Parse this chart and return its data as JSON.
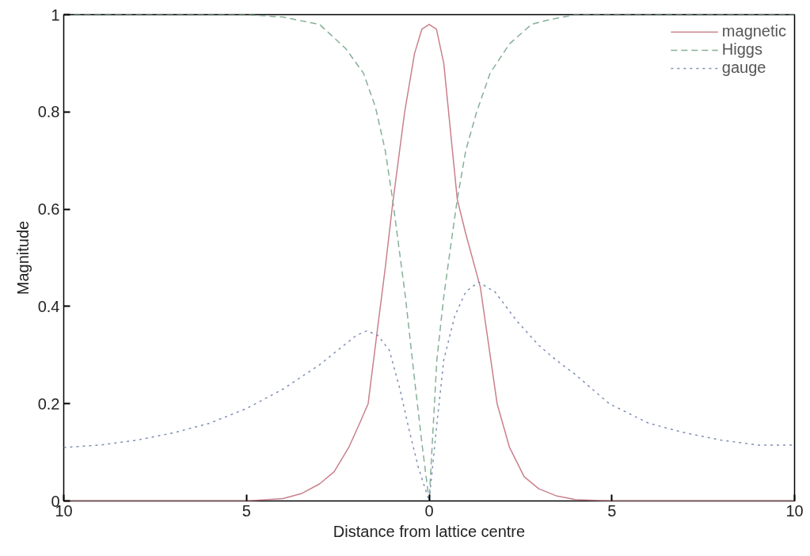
{
  "chart_data": {
    "type": "line",
    "xlabel": "Distance from lattice centre",
    "ylabel": "Magnitude",
    "xlim": [
      -10,
      10
    ],
    "ylim": [
      0,
      1
    ],
    "xticks": [
      {
        "value": -10,
        "label": "10"
      },
      {
        "value": -5,
        "label": "5"
      },
      0,
      5,
      10
    ],
    "yticks": [
      0,
      0.2,
      0.4,
      0.6,
      0.8,
      1
    ],
    "grid": false,
    "legend": "top right",
    "series": [
      {
        "name": "magnetic",
        "color": "#c9808c",
        "line_style": "solid",
        "x": [
          -10,
          -6,
          -5,
          -4,
          -3.5,
          -3,
          -2.6,
          -2.2,
          -1.9,
          -1.67,
          -1.42,
          -1.2,
          -1.0,
          -0.67,
          -0.4,
          -0.2,
          0,
          0.2,
          0.4,
          0.77,
          1.0,
          1.4,
          1.86,
          2.2,
          2.6,
          3,
          3.5,
          4,
          5,
          6,
          10
        ],
        "values": [
          0,
          0,
          0,
          0.005,
          0.015,
          0.035,
          0.06,
          0.11,
          0.16,
          0.2,
          0.35,
          0.48,
          0.61,
          0.8,
          0.92,
          0.97,
          0.98,
          0.97,
          0.9,
          0.62,
          0.55,
          0.44,
          0.2,
          0.11,
          0.05,
          0.025,
          0.01,
          0.003,
          0,
          0,
          0
        ]
      },
      {
        "name": "Higgs",
        "color": "#86b096",
        "line_style": "dashed",
        "x": [
          -10,
          -6,
          -5,
          -4,
          -3,
          -2.28,
          -1.8,
          -1.47,
          -1.2,
          -1.0,
          -0.65,
          -0.4,
          -0.2,
          0,
          0.21,
          0.4,
          0.6,
          0.77,
          1.0,
          1.3,
          1.67,
          2.2,
          2.8,
          3.3,
          4,
          5,
          6,
          10
        ],
        "values": [
          1,
          1,
          1,
          0.995,
          0.98,
          0.93,
          0.88,
          0.81,
          0.72,
          0.62,
          0.42,
          0.25,
          0.12,
          0,
          0.29,
          0.42,
          0.53,
          0.62,
          0.72,
          0.8,
          0.88,
          0.94,
          0.98,
          0.99,
          1,
          1,
          1,
          1
        ]
      },
      {
        "name": "gauge",
        "color": "#7f90b4",
        "line_style": "dotted",
        "x": [
          -10,
          -9,
          -8,
          -7,
          -6,
          -5,
          -4,
          -3,
          -2.5,
          -2,
          -1.7,
          -1.4,
          -1.09,
          -0.8,
          -0.56,
          -0.3,
          0,
          0.2,
          0.4,
          0.7,
          1.0,
          1.35,
          1.8,
          2.4,
          3.0,
          3.47,
          4.0,
          4.93,
          6,
          7,
          8,
          9,
          10
        ],
        "values": [
          0.11,
          0.115,
          0.125,
          0.14,
          0.16,
          0.19,
          0.23,
          0.28,
          0.31,
          0.34,
          0.35,
          0.34,
          0.31,
          0.23,
          0.15,
          0.07,
          0,
          0.15,
          0.29,
          0.38,
          0.43,
          0.45,
          0.43,
          0.37,
          0.32,
          0.29,
          0.26,
          0.2,
          0.16,
          0.14,
          0.125,
          0.115,
          0.115
        ]
      }
    ]
  }
}
